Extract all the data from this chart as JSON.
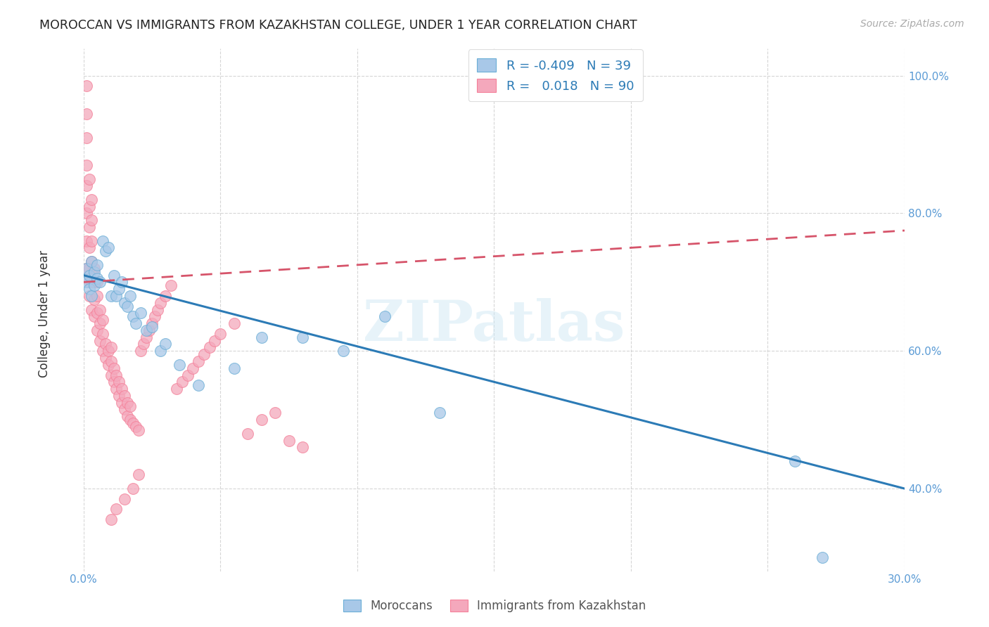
{
  "title": "MOROCCAN VS IMMIGRANTS FROM KAZAKHSTAN COLLEGE, UNDER 1 YEAR CORRELATION CHART",
  "source": "Source: ZipAtlas.com",
  "ylabel": "College, Under 1 year",
  "xmin": 0.0,
  "xmax": 0.3,
  "ymin": 0.28,
  "ymax": 1.04,
  "xtick_vals": [
    0.0,
    0.05,
    0.1,
    0.15,
    0.2,
    0.25,
    0.3
  ],
  "xtick_labels": [
    "0.0%",
    "",
    "",
    "",
    "",
    "",
    "30.0%"
  ],
  "ytick_vals": [
    0.4,
    0.6,
    0.8,
    1.0
  ],
  "ytick_labels": [
    "40.0%",
    "60.0%",
    "80.0%",
    "100.0%"
  ],
  "blue_color": "#a8c8e8",
  "pink_color": "#f4a8bc",
  "blue_edge_color": "#6baed6",
  "pink_edge_color": "#f48099",
  "blue_line_color": "#2c7bb6",
  "pink_line_color": "#d6546a",
  "moroccans_label": "Moroccans",
  "kazakhstan_label": "Immigrants from Kazakhstan",
  "watermark": "ZIPatlas",
  "blue_scatter_x": [
    0.001,
    0.001,
    0.002,
    0.002,
    0.003,
    0.003,
    0.004,
    0.004,
    0.005,
    0.005,
    0.006,
    0.007,
    0.008,
    0.009,
    0.01,
    0.011,
    0.012,
    0.013,
    0.014,
    0.015,
    0.016,
    0.017,
    0.018,
    0.019,
    0.021,
    0.023,
    0.025,
    0.028,
    0.03,
    0.035,
    0.042,
    0.055,
    0.065,
    0.08,
    0.095,
    0.11,
    0.13,
    0.26,
    0.27
  ],
  "blue_scatter_y": [
    0.72,
    0.7,
    0.71,
    0.69,
    0.73,
    0.68,
    0.715,
    0.695,
    0.705,
    0.725,
    0.7,
    0.76,
    0.745,
    0.75,
    0.68,
    0.71,
    0.68,
    0.69,
    0.7,
    0.67,
    0.665,
    0.68,
    0.65,
    0.64,
    0.655,
    0.63,
    0.635,
    0.6,
    0.61,
    0.58,
    0.55,
    0.575,
    0.62,
    0.62,
    0.6,
    0.65,
    0.51,
    0.44,
    0.3
  ],
  "pink_scatter_x": [
    0.001,
    0.001,
    0.001,
    0.001,
    0.001,
    0.001,
    0.001,
    0.001,
    0.002,
    0.002,
    0.002,
    0.002,
    0.002,
    0.002,
    0.002,
    0.003,
    0.003,
    0.003,
    0.003,
    0.003,
    0.003,
    0.004,
    0.004,
    0.004,
    0.004,
    0.005,
    0.005,
    0.005,
    0.005,
    0.006,
    0.006,
    0.006,
    0.007,
    0.007,
    0.007,
    0.008,
    0.008,
    0.009,
    0.009,
    0.01,
    0.01,
    0.01,
    0.011,
    0.011,
    0.012,
    0.012,
    0.013,
    0.013,
    0.014,
    0.014,
    0.015,
    0.015,
    0.016,
    0.016,
    0.017,
    0.017,
    0.018,
    0.019,
    0.02,
    0.021,
    0.022,
    0.023,
    0.024,
    0.025,
    0.026,
    0.027,
    0.028,
    0.03,
    0.032,
    0.034,
    0.036,
    0.038,
    0.04,
    0.042,
    0.044,
    0.046,
    0.048,
    0.05,
    0.055,
    0.06,
    0.065,
    0.07,
    0.075,
    0.08,
    0.01,
    0.012,
    0.015,
    0.018,
    0.02
  ],
  "pink_scatter_y": [
    0.985,
    0.945,
    0.91,
    0.87,
    0.84,
    0.8,
    0.76,
    0.72,
    0.7,
    0.68,
    0.72,
    0.75,
    0.78,
    0.81,
    0.85,
    0.66,
    0.7,
    0.73,
    0.76,
    0.79,
    0.82,
    0.65,
    0.675,
    0.7,
    0.72,
    0.63,
    0.655,
    0.68,
    0.7,
    0.615,
    0.64,
    0.66,
    0.6,
    0.625,
    0.645,
    0.59,
    0.61,
    0.58,
    0.6,
    0.565,
    0.585,
    0.605,
    0.555,
    0.575,
    0.545,
    0.565,
    0.535,
    0.555,
    0.525,
    0.545,
    0.515,
    0.535,
    0.505,
    0.525,
    0.5,
    0.52,
    0.495,
    0.49,
    0.485,
    0.6,
    0.61,
    0.62,
    0.63,
    0.64,
    0.65,
    0.66,
    0.67,
    0.68,
    0.695,
    0.545,
    0.555,
    0.565,
    0.575,
    0.585,
    0.595,
    0.605,
    0.615,
    0.625,
    0.64,
    0.48,
    0.5,
    0.51,
    0.47,
    0.46,
    0.355,
    0.37,
    0.385,
    0.4,
    0.42
  ],
  "blue_trendline_x": [
    0.0,
    0.3
  ],
  "blue_trendline_y": [
    0.71,
    0.4
  ],
  "pink_trendline_x": [
    0.0,
    0.3
  ],
  "pink_trendline_y": [
    0.7,
    0.775
  ]
}
